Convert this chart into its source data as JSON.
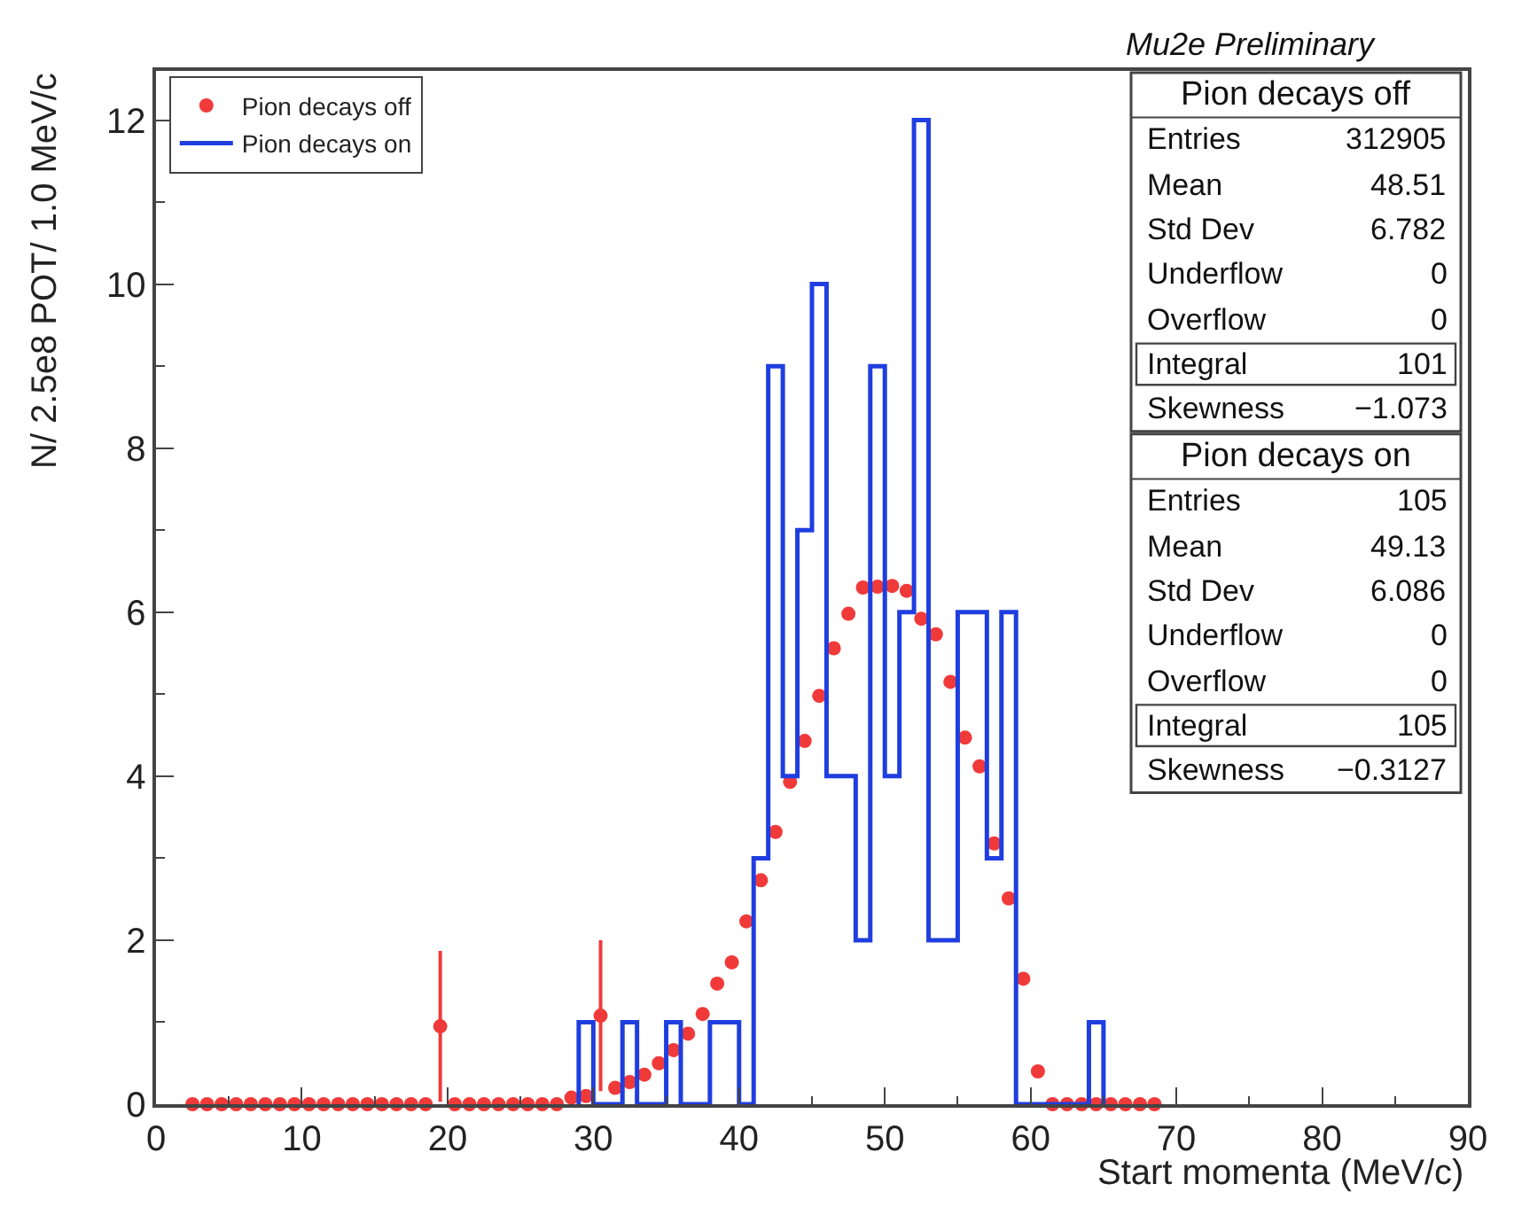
{
  "chart_data": {
    "type": "histogram",
    "title": "Mu2e Preliminary",
    "xlabel": "Start momenta (MeV/c)",
    "ylabel": "N/ 2.5e8 POT/ 1.0 MeV/c",
    "xlim": [
      0,
      90
    ],
    "xticks": [
      0,
      10,
      20,
      30,
      40,
      50,
      60,
      70,
      80,
      90
    ],
    "ylim": [
      0,
      12.6
    ],
    "yticks": [
      0,
      2,
      4,
      6,
      8,
      10,
      12
    ],
    "legend": "top left",
    "marker": "circle",
    "series": [
      {
        "name": "Pion decays off",
        "type": "scatter",
        "color": "#f03a3a",
        "x": [
          2.5,
          3.5,
          4.5,
          5.5,
          6.5,
          7.5,
          8.5,
          9.5,
          10.5,
          11.5,
          12.5,
          13.5,
          14.5,
          15.5,
          16.5,
          17.5,
          18.5,
          19.5,
          20.5,
          21.5,
          22.5,
          23.5,
          24.5,
          25.5,
          26.5,
          27.5,
          28.5,
          29.5,
          30.5,
          31.5,
          32.5,
          33.5,
          34.5,
          35.5,
          36.5,
          37.5,
          38.5,
          39.5,
          40.5,
          41.5,
          42.5,
          43.5,
          44.5,
          45.5,
          46.5,
          47.5,
          48.5,
          49.5,
          50.5,
          51.5,
          52.5,
          53.5,
          54.5,
          55.5,
          56.5,
          57.5,
          58.5,
          59.5,
          60.5,
          61.5,
          62.5,
          63.5,
          64.5,
          65.5,
          66.5,
          67.5,
          68.5
        ],
        "values": [
          0,
          0,
          0,
          0,
          0,
          0,
          0,
          0,
          0,
          0,
          0,
          0,
          0,
          0,
          0,
          0,
          0,
          0.95,
          0,
          0,
          0,
          0,
          0,
          0,
          0,
          0,
          0.08,
          0.1,
          1.08,
          0.2,
          0.27,
          0.36,
          0.5,
          0.66,
          0.86,
          1.1,
          1.47,
          1.73,
          2.23,
          2.73,
          3.32,
          3.93,
          4.43,
          4.98,
          5.56,
          5.98,
          6.3,
          6.31,
          6.32,
          6.26,
          5.92,
          5.73,
          5.15,
          4.47,
          4.12,
          3.18,
          2.51,
          1.53,
          0.4,
          0,
          0,
          0,
          0,
          0,
          0,
          0,
          0
        ],
        "errors": [
          null,
          null,
          null,
          null,
          null,
          null,
          null,
          null,
          null,
          null,
          null,
          null,
          null,
          null,
          null,
          null,
          null,
          0.92,
          null,
          null,
          null,
          null,
          null,
          null,
          null,
          null,
          null,
          null,
          0.92,
          null,
          null,
          null,
          null,
          null,
          null,
          null,
          null,
          null,
          null,
          null,
          null,
          null,
          null,
          null,
          null,
          null,
          null,
          null,
          null,
          null,
          null,
          null,
          null,
          null,
          null,
          null,
          null,
          null,
          null,
          null,
          null,
          null,
          null,
          null,
          null,
          null,
          null
        ]
      },
      {
        "name": "Pion decays on",
        "color": "#1f3ee0",
        "bins": [
          29,
          30,
          31,
          32,
          33,
          34,
          35,
          36,
          37,
          38,
          39,
          40,
          41,
          42,
          43,
          44,
          45,
          46,
          47,
          48,
          49,
          50,
          51,
          52,
          53,
          54,
          55,
          56,
          57,
          58,
          59,
          60,
          61,
          62,
          63,
          64,
          65
        ],
        "values": [
          1,
          0,
          0,
          1,
          0,
          0,
          1,
          0,
          0,
          1,
          1,
          0,
          3,
          9,
          4,
          7,
          10,
          4,
          4,
          2,
          9,
          4,
          6,
          12,
          2,
          2,
          6,
          6,
          3,
          6,
          0,
          0,
          0,
          0,
          0,
          1
        ]
      }
    ],
    "annotations": [
      "Pion decays off",
      "Entries 312905",
      "Mean 48.51",
      "Std Dev 6.782",
      "Underflow 0",
      "Overflow 0",
      "Integral 101",
      "Skewness −1.073",
      "Pion decays on",
      "Entries 105",
      "Mean 49.13",
      "Std Dev 6.086",
      "Underflow 0",
      "Overflow 0",
      "Integral 105",
      "Skewness −0.3127"
    ]
  }
}
